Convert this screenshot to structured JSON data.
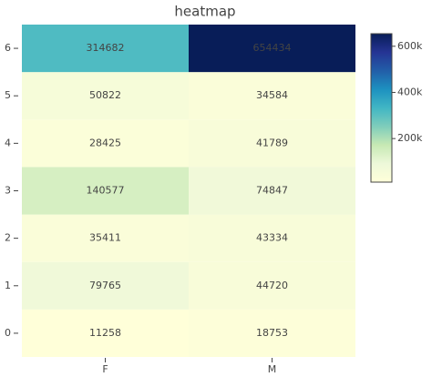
{
  "chart_data": {
    "type": "heatmap",
    "title": "heatmap",
    "x": [
      "F",
      "M"
    ],
    "y": [
      0,
      1,
      2,
      3,
      4,
      5,
      6
    ],
    "z": [
      [
        11258,
        18753
      ],
      [
        79765,
        44720
      ],
      [
        35411,
        43334
      ],
      [
        140577,
        74847
      ],
      [
        28425,
        41789
      ],
      [
        50822,
        34584
      ],
      [
        314682,
        654434
      ]
    ],
    "zlim": [
      11258,
      654434
    ],
    "zticks": [
      {
        "value": 200000,
        "label": "200k"
      },
      {
        "value": 400000,
        "label": "400k"
      },
      {
        "value": 600000,
        "label": "600k"
      }
    ],
    "colorscale": [
      "rgb(255,255,217)",
      "rgb(237,248,217)",
      "rgb(199,233,180)",
      "rgb(127,205,187)",
      "rgb(65,182,196)",
      "rgb(29,145,192)",
      "rgb(34,94,168)",
      "rgb(37,52,148)",
      "rgb(8,29,88)"
    ]
  }
}
